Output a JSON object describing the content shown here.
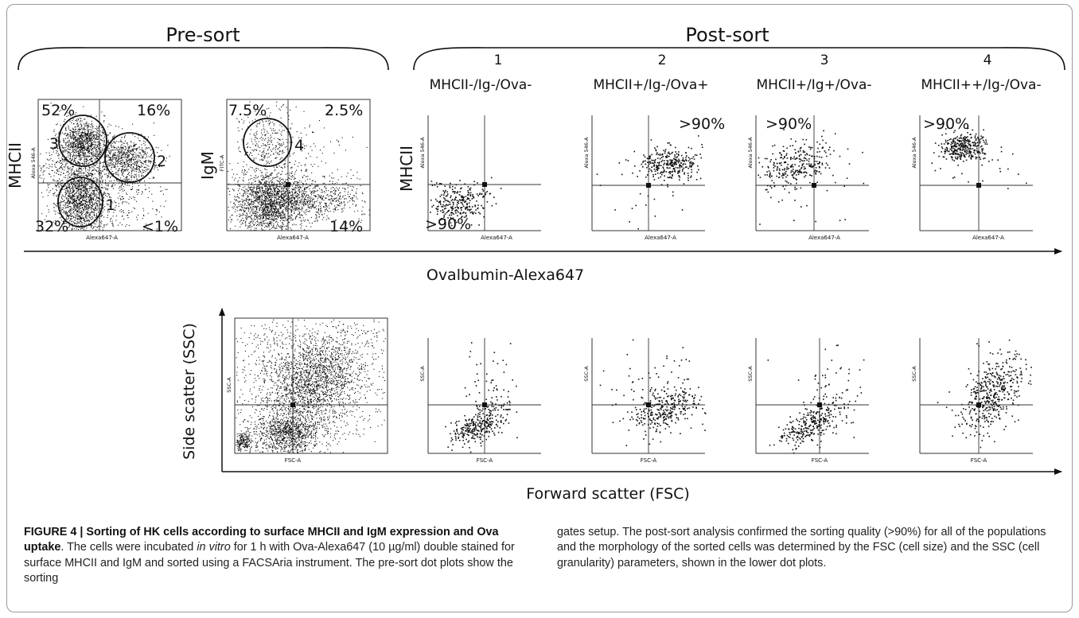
{
  "figure": {
    "pre_sort_title": "Pre-sort",
    "post_sort_title": "Post-sort",
    "axis_x_top": "Ovalbumin-Alexa647",
    "axis_x_bottom": "Forward scatter (FSC)",
    "axis_y_bottom": "Side scatter (SSC)",
    "pre_plot1": {
      "ylabel": "MHCII",
      "ytick_label": "Alexa 546-A",
      "xtick_label": "Alexa647-A",
      "quad_labels": [
        "52%",
        "16%",
        "32%",
        "<1%"
      ],
      "gate_labels": [
        "3",
        "2",
        "1"
      ]
    },
    "pre_plot2": {
      "ylabel": "IgM",
      "ytick_label": "FITC-A",
      "xtick_label": "Alexa647-A",
      "quad_labels": [
        "7.5%",
        "2.5%",
        "14%"
      ],
      "gate_labels": [
        "4"
      ]
    },
    "post_plots": [
      {
        "number": "1",
        "name": "MHCII-/Ig-/Ova-",
        "pct": ">90%",
        "ytick_label": "Alexa 546-A",
        "xtick_label": "Alexa647-A"
      },
      {
        "number": "2",
        "name": "MHCII+/Ig-/Ova+",
        "pct": ">90%",
        "ytick_label": "Alexa 546-A",
        "xtick_label": "Alexa647-A"
      },
      {
        "number": "3",
        "name": "MHCII+/Ig+/Ova-",
        "pct": ">90%",
        "ytick_label": "Alexa 546-A",
        "xtick_label": "Alexa647-A"
      },
      {
        "number": "4",
        "name": "MHCII++/Ig-/Ova-",
        "pct": ">90%",
        "ytick_label": "Alexa 546-A",
        "xtick_label": "Alexa647-A"
      }
    ],
    "post_ylabel": "MHCII",
    "scatter_plots": {
      "ytick_label": "SSC-A",
      "xtick_label": "FSC-A"
    }
  },
  "caption": {
    "bold_title": "FIGURE 4 | Sorting of HK cells according to surface MHCII and IgM expression and Ova uptake",
    "text_1": ". The cells were incubated ",
    "italic": "in vitro",
    "text_2": " for 1 h with Ova-Alexa647 (10 µg/ml) double stained for surface MHCII and IgM and sorted using a FACSAria instrument. The pre-sort dot plots show the sorting",
    "text_right": "gates setup. The post-sort analysis confirmed the sorting quality (>90%) for all of the populations and the morphology of the sorted cells was determined by the FSC (cell size) and the SSC (cell granularity) parameters, shown in the lower dot plots."
  }
}
